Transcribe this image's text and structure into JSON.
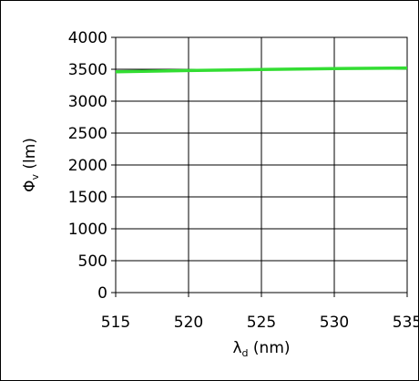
{
  "chart_data": {
    "type": "line",
    "xlabel": {
      "symbol": "λ",
      "subscript": "d",
      "unit": " (nm)"
    },
    "ylabel": {
      "symbol": "Φ",
      "subscript": "v",
      "unit": " (lm)"
    },
    "xlim": [
      515,
      535
    ],
    "ylim": [
      0,
      4000
    ],
    "x_ticks": [
      515,
      520,
      525,
      530,
      535
    ],
    "y_ticks": [
      0,
      500,
      1000,
      1500,
      2000,
      2500,
      3000,
      3500,
      4000
    ],
    "grid": true,
    "legend": "none",
    "series": [
      {
        "color": "#33dd33",
        "x": [
          515,
          520,
          525,
          530,
          535
        ],
        "y": [
          3460,
          3480,
          3495,
          3510,
          3520
        ]
      }
    ]
  }
}
